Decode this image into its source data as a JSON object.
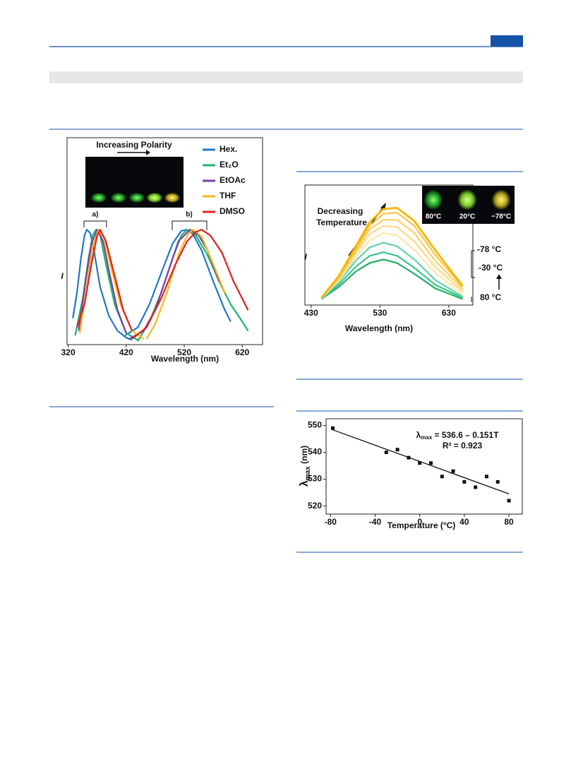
{
  "chart_data": [
    {
      "type": "line",
      "x_label": "Wavelength (nm)",
      "y_label": "I",
      "xlim": [
        318,
        655
      ],
      "xticks": [
        320,
        420,
        520,
        620
      ],
      "ylim": [
        0,
        1.8
      ],
      "legend": "upper right",
      "annotations": [
        "Increasing Polarity",
        "a)",
        "b)"
      ],
      "series": [
        {
          "name": "Hex.",
          "color": "#1f78c8",
          "x": [
            328,
            335,
            342,
            348,
            352,
            358,
            365,
            375,
            390,
            405,
            420,
            430,
            null,
            418,
            440,
            460,
            480,
            500,
            515,
            525,
            535,
            550,
            570,
            590,
            600
          ],
          "values": [
            0.23,
            0.45,
            0.75,
            0.95,
            1.0,
            0.97,
            0.8,
            0.5,
            0.25,
            0.12,
            0.06,
            0.04,
            null,
            0.08,
            0.15,
            0.35,
            0.62,
            0.88,
            0.99,
            1.0,
            0.96,
            0.82,
            0.55,
            0.3,
            0.2
          ]
        },
        {
          "name": "Et₂O",
          "color": "#1db36a",
          "x": [
            332,
            345,
            355,
            362,
            368,
            375,
            385,
            400,
            420,
            440,
            null,
            440,
            460,
            480,
            500,
            515,
            525,
            540,
            560,
            580,
            600,
            620,
            630
          ],
          "values": [
            0.08,
            0.4,
            0.75,
            0.95,
            1.0,
            0.95,
            0.7,
            0.35,
            0.1,
            0.04,
            null,
            0.03,
            0.2,
            0.45,
            0.75,
            0.95,
            1.0,
            0.95,
            0.78,
            0.55,
            0.35,
            0.2,
            0.12
          ]
        },
        {
          "name": "EtOAc",
          "color": "#7b3fa8",
          "x": [
            338,
            350,
            360,
            370,
            380,
            392,
            405,
            420,
            null,
            425,
            450,
            470,
            490,
            510,
            530,
            545,
            560,
            580
          ],
          "values": [
            0.12,
            0.55,
            0.88,
            1.0,
            0.9,
            0.6,
            0.3,
            0.1,
            null,
            0.05,
            0.12,
            0.3,
            0.6,
            0.9,
            1.0,
            0.95,
            0.82,
            0.55
          ]
        },
        {
          "name": "THF",
          "color": "#f4b81c",
          "x": [
            340,
            352,
            362,
            372,
            382,
            395,
            410,
            430,
            450,
            null,
            455,
            470,
            490,
            510,
            525,
            535,
            550,
            570,
            590
          ],
          "values": [
            0.1,
            0.5,
            0.85,
            1.0,
            0.92,
            0.65,
            0.35,
            0.12,
            0.05,
            null,
            0.05,
            0.18,
            0.45,
            0.78,
            0.95,
            1.0,
            0.94,
            0.7,
            0.45
          ]
        },
        {
          "name": "DMSO",
          "color": "#e0201e",
          "x": [
            335,
            348,
            360,
            370,
            375,
            385,
            400,
            415,
            430,
            null,
            430,
            455,
            480,
            505,
            525,
            540,
            550,
            565,
            585,
            605,
            630
          ],
          "values": [
            0.15,
            0.35,
            0.7,
            0.95,
            1.0,
            0.9,
            0.6,
            0.3,
            0.12,
            null,
            0.05,
            0.15,
            0.4,
            0.7,
            0.9,
            0.98,
            1.0,
            0.95,
            0.8,
            0.55,
            0.3
          ]
        }
      ]
    },
    {
      "type": "line",
      "x_label": "Wavelength (nm)",
      "y_label": "I",
      "xlim": [
        421,
        665
      ],
      "xticks": [
        430,
        530,
        630
      ],
      "ylim": [
        0,
        1
      ],
      "annotations": [
        "Decreasing",
        "Temperature",
        "-78 °C",
        "-30 °C",
        "80 °C"
      ],
      "inset_labels": [
        "80°C",
        "20°C",
        "−78°C"
      ],
      "x": [
        445,
        470,
        495,
        515,
        535,
        555,
        580,
        610,
        650
      ],
      "series": [
        {
          "color": "#22b067",
          "values": [
            0.05,
            0.15,
            0.28,
            0.35,
            0.38,
            0.35,
            0.26,
            0.14,
            0.05
          ]
        },
        {
          "color": "#3cc48a",
          "values": [
            0.05,
            0.17,
            0.32,
            0.41,
            0.44,
            0.41,
            0.31,
            0.17,
            0.06
          ]
        },
        {
          "color": "#5fd3a8",
          "values": [
            0.05,
            0.19,
            0.37,
            0.48,
            0.52,
            0.49,
            0.38,
            0.21,
            0.07
          ]
        },
        {
          "color": "#fde7a8",
          "values": [
            0.06,
            0.2,
            0.4,
            0.54,
            0.6,
            0.58,
            0.46,
            0.27,
            0.09
          ]
        },
        {
          "color": "#fcdb86",
          "values": [
            0.06,
            0.21,
            0.43,
            0.59,
            0.66,
            0.65,
            0.53,
            0.32,
            0.11
          ]
        },
        {
          "color": "#fbcf64",
          "values": [
            0.06,
            0.22,
            0.45,
            0.63,
            0.71,
            0.71,
            0.6,
            0.37,
            0.13
          ]
        },
        {
          "color": "#f8c444",
          "values": [
            0.06,
            0.23,
            0.47,
            0.66,
            0.76,
            0.77,
            0.66,
            0.42,
            0.15
          ]
        },
        {
          "color": "#f2b700",
          "values": [
            0.06,
            0.24,
            0.49,
            0.69,
            0.8,
            0.81,
            0.7,
            0.46,
            0.16
          ]
        }
      ]
    },
    {
      "type": "scatter",
      "x_label": "Temperature (°C)",
      "y_label": {
        "symbol": "λ",
        "subscript": "max",
        "unit": " (nm)"
      },
      "xlim": [
        -84,
        92
      ],
      "xticks": [
        -80,
        -40,
        0,
        40,
        80
      ],
      "ylim": [
        517,
        552.5
      ],
      "yticks": [
        520,
        530,
        540,
        550
      ],
      "color": "#111111",
      "equation": {
        "symbol": "λ",
        "subscript": "max",
        "text": " = 536.6 – 0.151T"
      },
      "r2": "R² = 0.923",
      "fit": {
        "intercept": 536.6,
        "slope": -0.151
      },
      "x": [
        -78,
        -30,
        -20,
        -10,
        0,
        10,
        20,
        30,
        40,
        50,
        60,
        70,
        80
      ],
      "values": [
        549,
        540,
        541,
        538,
        536,
        536,
        531,
        533,
        529,
        527,
        531,
        529,
        522
      ]
    }
  ]
}
